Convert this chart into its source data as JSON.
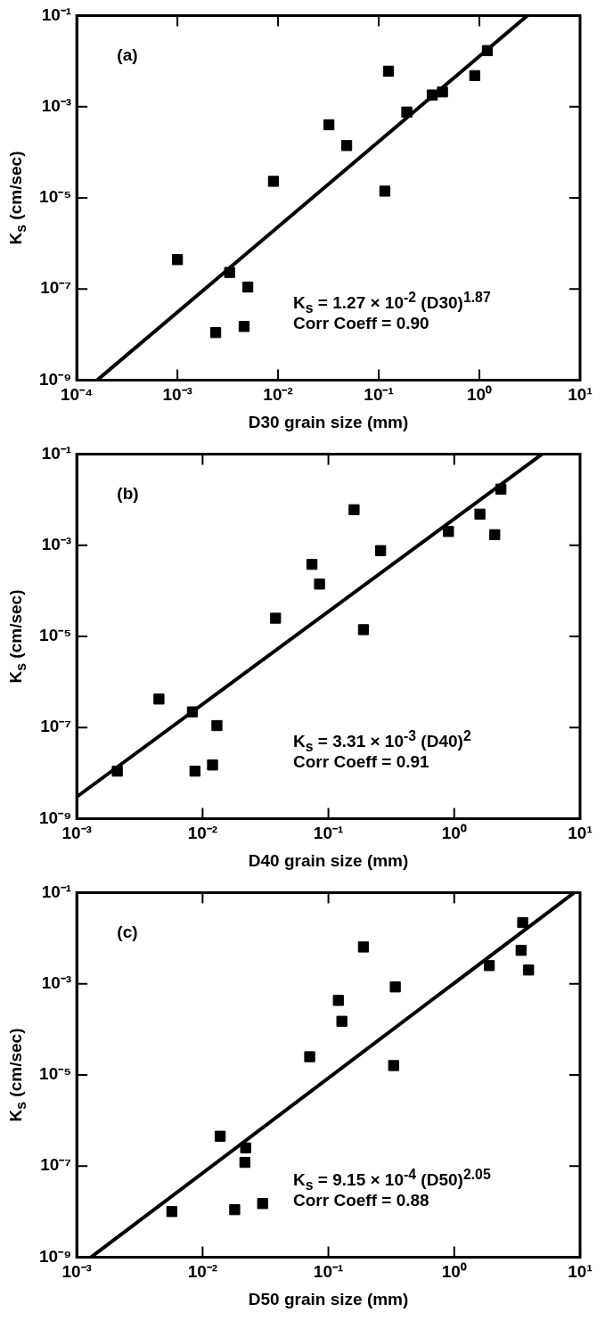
{
  "chart_data": [
    {
      "type": "scatter",
      "xlabel": "D30 grain size (mm)",
      "ylabel": "K$_{s}$ (cm/sec)",
      "log": "xy",
      "marker": "square",
      "xlim": [
        0.0001,
        10
      ],
      "xticks": [
        {
          "value": 0.0001,
          "label": "10⁻⁴"
        },
        {
          "value": 0.001,
          "label": "10⁻³"
        },
        {
          "value": 0.01,
          "label": "10⁻²"
        },
        {
          "value": 0.1,
          "label": "10⁻¹"
        },
        {
          "value": 1,
          "label": "10⁰"
        },
        {
          "value": 10,
          "label": "10¹"
        }
      ],
      "ylim": [
        1e-09,
        0.1
      ],
      "yticks": [
        {
          "value": 1e-09,
          "label": "10⁻⁹"
        },
        {
          "value": 1e-07,
          "label": "10⁻⁷"
        },
        {
          "value": 1e-05,
          "label": "10⁻⁵"
        },
        {
          "value": 0.001,
          "label": "10⁻³"
        },
        {
          "value": 0.1,
          "label": "10⁻¹"
        }
      ],
      "annotations": [
        "(a)",
        "K$_{s}$ = 1.27 × 10$^{-2}$ (D30)$^{1.87}$",
        "Corr Coeff = 0.90"
      ],
      "series": [
        {
          "type": "scatter",
          "color": "#000000",
          "x": [
            1.2,
            0.125,
            0.9,
            0.34,
            0.43,
            0.19,
            0.032,
            0.048,
            0.009,
            0.115,
            0.001,
            0.0033,
            0.005,
            0.0046,
            0.0024
          ],
          "values": [
            0.017,
            0.006,
            0.0048,
            0.0018,
            0.0021,
            0.00076,
            0.0004,
            0.00014,
            2.3e-05,
            1.4e-05,
            4.4e-07,
            2.3e-07,
            1.1e-07,
            1.5e-08,
            1.1e-08
          ]
        },
        {
          "type": "line",
          "color": "#000000",
          "marker": "none",
          "line_style": "solid",
          "x": [
            0.00016,
            3
          ],
          "values": [
            1e-09,
            0.1
          ]
        }
      ]
    },
    {
      "type": "scatter",
      "xlabel": "D40 grain size (mm)",
      "ylabel": "K$_{s}$ (cm/sec)",
      "log": "xy",
      "marker": "square",
      "xlim": [
        0.001,
        10
      ],
      "xticks": [
        {
          "value": 0.001,
          "label": "10⁻³"
        },
        {
          "value": 0.01,
          "label": "10⁻²"
        },
        {
          "value": 0.1,
          "label": "10⁻¹"
        },
        {
          "value": 1,
          "label": "10⁰"
        },
        {
          "value": 10,
          "label": "10¹"
        }
      ],
      "ylim": [
        1e-09,
        0.1
      ],
      "yticks": [
        {
          "value": 1e-09,
          "label": "10⁻⁹"
        },
        {
          "value": 1e-07,
          "label": "10⁻⁷"
        },
        {
          "value": 1e-05,
          "label": "10⁻⁵"
        },
        {
          "value": 0.001,
          "label": "10⁻³"
        },
        {
          "value": 0.1,
          "label": "10⁻¹"
        }
      ],
      "annotations": [
        "(b)",
        "K$_{s}$ = 3.31 × 10$^{-3}$ (D40)$^{2}$",
        "Corr Coeff = 0.91"
      ],
      "series": [
        {
          "type": "scatter",
          "color": "#000000",
          "x": [
            2.35,
            0.16,
            1.6,
            0.9,
            2.1,
            0.26,
            0.074,
            0.085,
            0.038,
            0.19,
            0.0045,
            0.0083,
            0.013,
            0.012,
            0.0087,
            0.0021
          ],
          "values": [
            0.017,
            0.006,
            0.0048,
            0.002,
            0.0017,
            0.00076,
            0.00038,
            0.00014,
            2.5e-05,
            1.4e-05,
            4.2e-07,
            2.2e-07,
            1.1e-07,
            1.5e-08,
            1.1e-08,
            1.1e-08
          ]
        },
        {
          "type": "line",
          "color": "#000000",
          "marker": "none",
          "line_style": "solid",
          "x": [
            0.001,
            5
          ],
          "values": [
            3e-09,
            0.1
          ]
        }
      ]
    },
    {
      "type": "scatter",
      "xlabel": "D50 grain size (mm)",
      "ylabel": "K$_{s}$ (cm/sec)",
      "log": "xy",
      "marker": "square",
      "xlim": [
        0.001,
        10
      ],
      "xticks": [
        {
          "value": 0.001,
          "label": "10⁻³"
        },
        {
          "value": 0.01,
          "label": "10⁻²"
        },
        {
          "value": 0.1,
          "label": "10⁻¹"
        },
        {
          "value": 1,
          "label": "10⁰"
        },
        {
          "value": 10,
          "label": "10¹"
        }
      ],
      "ylim": [
        1e-09,
        0.1
      ],
      "yticks": [
        {
          "value": 1e-09,
          "label": "10⁻⁹"
        },
        {
          "value": 1e-07,
          "label": "10⁻⁷"
        },
        {
          "value": 1e-05,
          "label": "10⁻⁵"
        },
        {
          "value": 0.001,
          "label": "10⁻³"
        },
        {
          "value": 0.1,
          "label": "10⁻¹"
        }
      ],
      "annotations": [
        "(c)",
        "K$_{s}$ = 9.15 × 10$^{-4}$ (D50)$^{2.05}$",
        "Corr Coeff = 0.88"
      ],
      "series": [
        {
          "type": "scatter",
          "color": "#000000",
          "x": [
            3.5,
            0.19,
            3.4,
            1.9,
            3.9,
            0.34,
            0.12,
            0.128,
            0.071,
            0.33,
            0.0138,
            0.022,
            0.0217,
            0.03,
            0.018,
            0.0057
          ],
          "values": [
            0.022,
            0.0064,
            0.0054,
            0.0025,
            0.002,
            0.00085,
            0.00043,
            0.00015,
            2.5e-05,
            1.6e-05,
            4.5e-07,
            2.5e-07,
            1.2e-07,
            1.5e-08,
            1.1e-08,
            1e-08
          ]
        },
        {
          "type": "line",
          "color": "#000000",
          "marker": "none",
          "line_style": "solid",
          "x": [
            0.0013,
            9
          ],
          "values": [
            1e-09,
            0.1
          ]
        }
      ]
    }
  ]
}
